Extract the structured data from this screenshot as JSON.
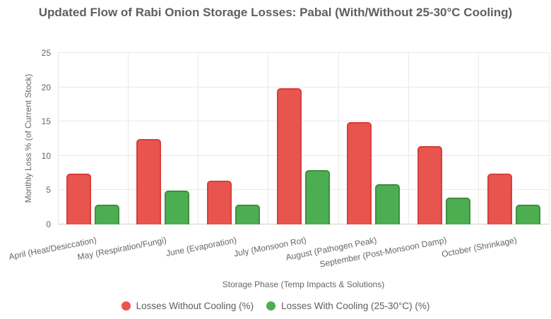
{
  "chart_data": {
    "type": "bar",
    "title": "Updated Flow of Rabi Onion Storage Losses: Pabal (With/Without 25-30°C Cooling)",
    "xlabel": "Storage Phase (Temp Impacts & Solutions)",
    "ylabel": "Monthly Loss % (of Current Stock)",
    "categories": [
      "April (Heat/Desiccation)",
      "May (Respiration/Fungi)",
      "June (Evaporation)",
      "July (Monsoon Rot)",
      "August (Pathogen Peak)",
      "September (Post-Monsoon Damp)",
      "October (Shrinkage)"
    ],
    "series": [
      {
        "name": "Losses Without Cooling (%)",
        "values": [
          7.4,
          12.4,
          6.4,
          19.9,
          14.9,
          11.4,
          7.4
        ],
        "fill_color": "#E8544E",
        "border_color": "#D83E39"
      },
      {
        "name": "Losses With Cooling (25-30°C) (%)",
        "values": [
          2.9,
          4.9,
          2.9,
          7.9,
          5.9,
          3.9,
          2.9
        ],
        "fill_color": "#4CAE50",
        "border_color": "#3E8E41"
      }
    ],
    "ylim": [
      0,
      25
    ],
    "yticks": [
      0,
      5,
      10,
      15,
      20,
      25
    ],
    "grid": true,
    "legend_position": "bottom",
    "colors": {
      "grid": "#e9e9e9",
      "axis_line": "#cfcfcf",
      "title_text": "#5f5f5f",
      "tick_text": "#666666",
      "legend_text": "#5e5e5e",
      "background": "#ffffff"
    }
  }
}
